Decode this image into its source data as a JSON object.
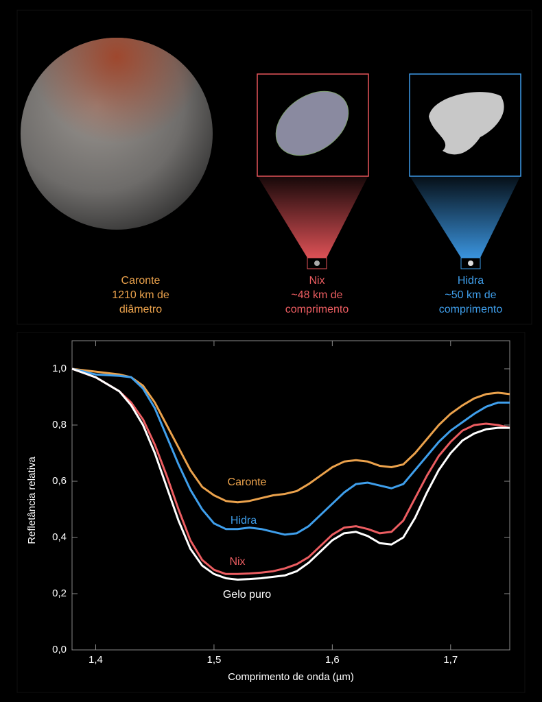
{
  "images": {
    "panels": [
      {
        "lines": [
          "Caronte",
          "1210 km de",
          "diâmetro"
        ],
        "color": "#eba24c"
      },
      {
        "lines": [
          "Nix",
          "~48 km de",
          "comprimento"
        ],
        "color": "#ec5d61"
      },
      {
        "lines": [
          "Hidra",
          "~50 km de",
          "comprimento"
        ],
        "color": "#3f9fec"
      }
    ]
  },
  "chart_data": {
    "type": "line",
    "x_label": "Comprimento de onda (µm)",
    "y_label": "Refletância relativa",
    "xlim": [
      1.38,
      1.75
    ],
    "ylim": [
      0,
      1.1
    ],
    "xticks": [
      {
        "value": 1.4,
        "label": "1,4"
      },
      {
        "value": 1.5,
        "label": "1,5"
      },
      {
        "value": 1.6,
        "label": "1,6"
      },
      {
        "value": 1.7,
        "label": "1,7"
      }
    ],
    "yticks": [
      {
        "value": 0,
        "label": "0,0"
      },
      {
        "value": 0.2,
        "label": "0,2"
      },
      {
        "value": 0.4,
        "label": "0,4"
      },
      {
        "value": 0.6,
        "label": "0,6"
      },
      {
        "value": 0.8,
        "label": "0,8"
      },
      {
        "value": 1.0,
        "label": "1,0"
      }
    ],
    "x": [
      1.38,
      1.4,
      1.42,
      1.43,
      1.44,
      1.45,
      1.46,
      1.47,
      1.48,
      1.49,
      1.5,
      1.51,
      1.52,
      1.53,
      1.54,
      1.55,
      1.56,
      1.57,
      1.58,
      1.59,
      1.6,
      1.61,
      1.62,
      1.63,
      1.64,
      1.65,
      1.66,
      1.67,
      1.68,
      1.69,
      1.7,
      1.71,
      1.72,
      1.73,
      1.74,
      1.75
    ],
    "series": [
      {
        "name": "Caronte",
        "color": "#eba24c",
        "values": [
          1.0,
          0.99,
          0.98,
          0.97,
          0.94,
          0.88,
          0.8,
          0.72,
          0.64,
          0.58,
          0.55,
          0.53,
          0.525,
          0.53,
          0.54,
          0.55,
          0.555,
          0.565,
          0.59,
          0.62,
          0.65,
          0.67,
          0.675,
          0.67,
          0.655,
          0.65,
          0.66,
          0.7,
          0.75,
          0.8,
          0.84,
          0.87,
          0.895,
          0.91,
          0.915,
          0.91
        ]
      },
      {
        "name": "Hidra",
        "color": "#3f9fec",
        "values": [
          1.0,
          0.98,
          0.975,
          0.97,
          0.93,
          0.86,
          0.76,
          0.66,
          0.57,
          0.5,
          0.45,
          0.43,
          0.43,
          0.435,
          0.43,
          0.42,
          0.41,
          0.415,
          0.44,
          0.48,
          0.52,
          0.56,
          0.59,
          0.595,
          0.585,
          0.575,
          0.59,
          0.64,
          0.69,
          0.74,
          0.78,
          0.81,
          0.84,
          0.865,
          0.88,
          0.88
        ]
      },
      {
        "name": "Nix",
        "color": "#ec5d61",
        "values": [
          1.0,
          0.97,
          0.92,
          0.88,
          0.82,
          0.73,
          0.62,
          0.5,
          0.39,
          0.32,
          0.285,
          0.27,
          0.27,
          0.272,
          0.275,
          0.28,
          0.29,
          0.305,
          0.33,
          0.37,
          0.41,
          0.435,
          0.44,
          0.43,
          0.415,
          0.42,
          0.46,
          0.54,
          0.62,
          0.69,
          0.74,
          0.78,
          0.8,
          0.805,
          0.8,
          0.79
        ]
      },
      {
        "name": "Gelo puro",
        "color": "#ffffff",
        "values": [
          1.0,
          0.97,
          0.92,
          0.87,
          0.8,
          0.7,
          0.58,
          0.46,
          0.36,
          0.3,
          0.27,
          0.255,
          0.25,
          0.252,
          0.255,
          0.26,
          0.265,
          0.28,
          0.31,
          0.35,
          0.39,
          0.415,
          0.42,
          0.405,
          0.38,
          0.375,
          0.4,
          0.47,
          0.56,
          0.64,
          0.7,
          0.745,
          0.77,
          0.785,
          0.79,
          0.79
        ]
      }
    ]
  }
}
